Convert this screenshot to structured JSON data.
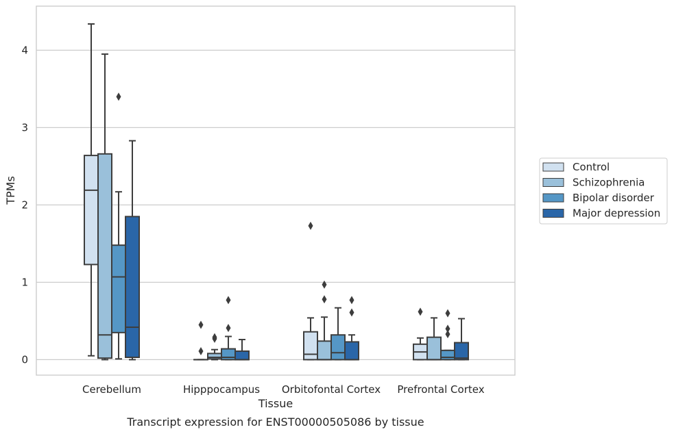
{
  "chart_data": {
    "type": "box",
    "caption": "Transcript expression for ENST00000505086 by tissue",
    "xlabel": "Tissue",
    "ylabel": "TPMs",
    "ylim": [
      -0.2,
      4.57
    ],
    "yticks": [
      0,
      1,
      2,
      3,
      4
    ],
    "grid": "horizontal",
    "legend_position": "right",
    "categories": [
      "Cerebellum",
      "Hipppocampus",
      "Orbitofontal Cortex",
      "Prefrontal Cortex"
    ],
    "series": [
      {
        "name": "Control",
        "color": "#d1e1f0",
        "boxes": [
          {
            "whisker_low": 0.05,
            "q1": 1.23,
            "median": 2.19,
            "q3": 2.64,
            "whisker_high": 4.34,
            "outliers": []
          },
          {
            "whisker_low": 0.0,
            "q1": 0.0,
            "median": 0.0,
            "q3": 0.0,
            "whisker_high": 0.0,
            "outliers": [
              0.11,
              0.45
            ]
          },
          {
            "whisker_low": 0.0,
            "q1": 0.0,
            "median": 0.07,
            "q3": 0.36,
            "whisker_high": 0.54,
            "outliers": [
              1.73
            ]
          },
          {
            "whisker_low": 0.0,
            "q1": 0.0,
            "median": 0.1,
            "q3": 0.2,
            "whisker_high": 0.28,
            "outliers": [
              0.62
            ]
          }
        ]
      },
      {
        "name": "Schizophrenia",
        "color": "#9ac0da",
        "boxes": [
          {
            "whisker_low": 0.0,
            "q1": 0.02,
            "median": 0.32,
            "q3": 2.66,
            "whisker_high": 3.95,
            "outliers": []
          },
          {
            "whisker_low": 0.0,
            "q1": 0.01,
            "median": 0.03,
            "q3": 0.08,
            "whisker_high": 0.13,
            "outliers": [
              0.27,
              0.29
            ]
          },
          {
            "whisker_low": 0.0,
            "q1": 0.0,
            "median": 0.0,
            "q3": 0.24,
            "whisker_high": 0.55,
            "outliers": [
              0.78,
              0.97
            ]
          },
          {
            "whisker_low": 0.0,
            "q1": 0.0,
            "median": 0.0,
            "q3": 0.29,
            "whisker_high": 0.54,
            "outliers": []
          }
        ]
      },
      {
        "name": "Bipolar disorder",
        "color": "#5597c6",
        "boxes": [
          {
            "whisker_low": 0.01,
            "q1": 0.35,
            "median": 1.07,
            "q3": 1.48,
            "whisker_high": 2.17,
            "outliers": [
              3.4
            ]
          },
          {
            "whisker_low": 0.0,
            "q1": 0.0,
            "median": 0.03,
            "q3": 0.14,
            "whisker_high": 0.3,
            "outliers": [
              0.41,
              0.77
            ]
          },
          {
            "whisker_low": 0.0,
            "q1": 0.0,
            "median": 0.09,
            "q3": 0.32,
            "whisker_high": 0.67,
            "outliers": []
          },
          {
            "whisker_low": 0.0,
            "q1": 0.0,
            "median": 0.03,
            "q3": 0.12,
            "whisker_high": 0.12,
            "outliers": [
              0.33,
              0.4,
              0.6
            ]
          }
        ]
      },
      {
        "name": "Major depression",
        "color": "#2a66a8",
        "boxes": [
          {
            "whisker_low": 0.0,
            "q1": 0.03,
            "median": 0.42,
            "q3": 1.85,
            "whisker_high": 2.83,
            "outliers": []
          },
          {
            "whisker_low": 0.0,
            "q1": 0.0,
            "median": 0.0,
            "q3": 0.11,
            "whisker_high": 0.26,
            "outliers": []
          },
          {
            "whisker_low": 0.0,
            "q1": 0.0,
            "median": 0.0,
            "q3": 0.23,
            "whisker_high": 0.32,
            "outliers": [
              0.61,
              0.77
            ]
          },
          {
            "whisker_low": 0.0,
            "q1": 0.0,
            "median": 0.02,
            "q3": 0.22,
            "whisker_high": 0.53,
            "outliers": []
          }
        ]
      }
    ]
  }
}
